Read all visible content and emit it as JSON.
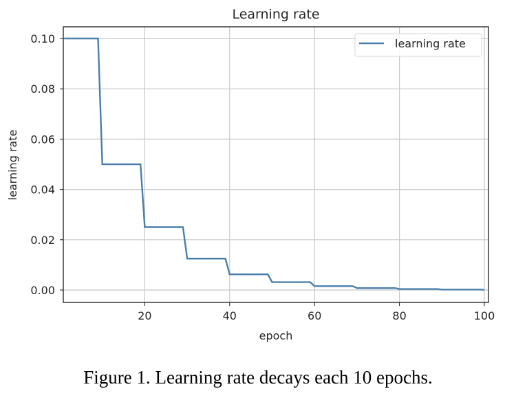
{
  "chart_data": {
    "type": "line",
    "title": "Learning rate",
    "xlabel": "epoch",
    "ylabel": "learning rate",
    "xlim": [
      1,
      100
    ],
    "ylim": [
      -0.005,
      0.105
    ],
    "xticks": [
      20,
      40,
      60,
      80,
      100
    ],
    "xtick_labels": [
      "20",
      "40",
      "60",
      "80",
      "100"
    ],
    "yticks": [
      0.0,
      0.02,
      0.04,
      0.06,
      0.08,
      0.1
    ],
    "ytick_labels": [
      "0.00",
      "0.02",
      "0.04",
      "0.06",
      "0.08",
      "0.10"
    ],
    "grid": true,
    "legend": {
      "position": "upper right",
      "entries": [
        "learning rate"
      ]
    },
    "series": [
      {
        "name": "learning rate",
        "color": "#4a7fab",
        "x": [
          1,
          2,
          3,
          4,
          5,
          6,
          7,
          8,
          9,
          10,
          11,
          12,
          13,
          14,
          15,
          16,
          17,
          18,
          19,
          20,
          21,
          22,
          23,
          24,
          25,
          26,
          27,
          28,
          29,
          30,
          31,
          32,
          33,
          34,
          35,
          36,
          37,
          38,
          39,
          40,
          41,
          42,
          43,
          44,
          45,
          46,
          47,
          48,
          49,
          50,
          51,
          52,
          53,
          54,
          55,
          56,
          57,
          58,
          59,
          60,
          61,
          62,
          63,
          64,
          65,
          66,
          67,
          68,
          69,
          70,
          71,
          72,
          73,
          74,
          75,
          76,
          77,
          78,
          79,
          80,
          81,
          82,
          83,
          84,
          85,
          86,
          87,
          88,
          89,
          90,
          91,
          92,
          93,
          94,
          95,
          96,
          97,
          98,
          99,
          100
        ],
        "values": [
          0.1,
          0.1,
          0.1,
          0.1,
          0.1,
          0.1,
          0.1,
          0.1,
          0.1,
          0.05,
          0.05,
          0.05,
          0.05,
          0.05,
          0.05,
          0.05,
          0.05,
          0.05,
          0.05,
          0.025,
          0.025,
          0.025,
          0.025,
          0.025,
          0.025,
          0.025,
          0.025,
          0.025,
          0.025,
          0.0125,
          0.0125,
          0.0125,
          0.0125,
          0.0125,
          0.0125,
          0.0125,
          0.0125,
          0.0125,
          0.0125,
          0.00625,
          0.00625,
          0.00625,
          0.00625,
          0.00625,
          0.00625,
          0.00625,
          0.00625,
          0.00625,
          0.00625,
          0.003125,
          0.003125,
          0.003125,
          0.003125,
          0.003125,
          0.003125,
          0.003125,
          0.003125,
          0.003125,
          0.003125,
          0.0015625,
          0.0015625,
          0.0015625,
          0.0015625,
          0.0015625,
          0.0015625,
          0.0015625,
          0.0015625,
          0.0015625,
          0.0015625,
          0.00078125,
          0.00078125,
          0.00078125,
          0.00078125,
          0.00078125,
          0.00078125,
          0.00078125,
          0.00078125,
          0.00078125,
          0.00078125,
          0.000390625,
          0.000390625,
          0.000390625,
          0.000390625,
          0.000390625,
          0.000390625,
          0.000390625,
          0.000390625,
          0.000390625,
          0.000390625,
          0.0001953125,
          0.0001953125,
          0.0001953125,
          0.0001953125,
          0.0001953125,
          0.0001953125,
          0.0001953125,
          0.0001953125,
          0.0001953125,
          0.0001953125,
          9.765625e-05
        ]
      }
    ]
  },
  "caption": "Figure 1. Learning rate decays each 10 epochs."
}
